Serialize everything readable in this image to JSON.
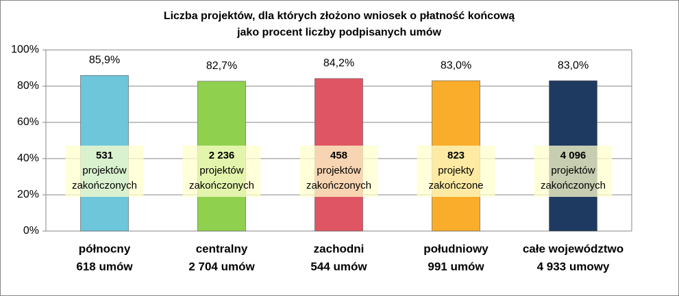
{
  "chart_data": {
    "type": "bar",
    "title": [
      "Liczba projektów, dla których złożono wniosek o płatność końcową",
      "jako procent liczby podpisanych umów"
    ],
    "categories": [
      "północny",
      "centralny",
      "zachodni",
      "południowy",
      "całe województwo"
    ],
    "category_notes": [
      "618 umów",
      "2 704 umów",
      "544 umów",
      "991 umów",
      "4 933 umowy"
    ],
    "values": [
      85.9,
      82.7,
      84.2,
      83.0,
      83.0
    ],
    "value_labels": [
      "85,9%",
      "82,7%",
      "84,2%",
      "83,0%",
      "83,0%"
    ],
    "colors": [
      "#6ec6db",
      "#8fd14f",
      "#e05563",
      "#f9ad2a",
      "#1f3a60"
    ],
    "annotations": [
      [
        "531",
        "projektów",
        "zakończonych"
      ],
      [
        "2 236",
        "projektów",
        "zakończonych"
      ],
      [
        "458",
        "projektów",
        "zakończonych"
      ],
      [
        "823",
        "projekty",
        "zakończone"
      ],
      [
        "4 096",
        "projektów",
        "zakończonych"
      ]
    ],
    "ylim": [
      0,
      100
    ],
    "yticks": [
      {
        "value": 0,
        "label": "0%"
      },
      {
        "value": 20,
        "label": "20%"
      },
      {
        "value": 40,
        "label": "40%"
      },
      {
        "value": 60,
        "label": "60%"
      },
      {
        "value": 80,
        "label": "80%"
      },
      {
        "value": 100,
        "label": "100%"
      }
    ],
    "grid": true
  }
}
